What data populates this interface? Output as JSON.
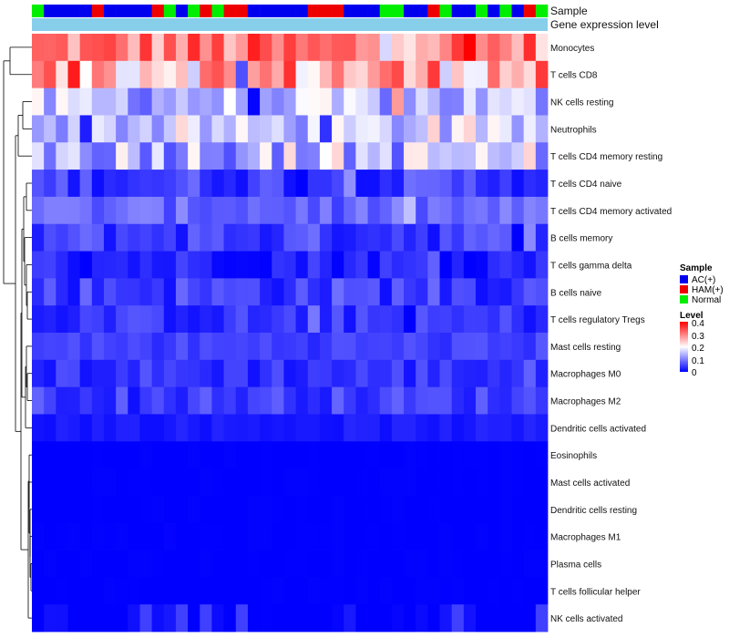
{
  "chart_data": {
    "type": "heatmap",
    "title": "",
    "annotation_rows": [
      "Sample",
      "Gene expression level"
    ],
    "rows": [
      "Monocytes",
      "T cells CD8",
      "NK cells resting",
      "Neutrophils",
      "T cells CD4 memory resting",
      "T cells CD4 naive",
      "T cells CD4 memory activated",
      "B cells memory",
      "T cells gamma delta",
      "B cells naive",
      "T cells regulatory  Tregs",
      "Mast cells resting",
      "Macrophages M0",
      "Macrophages M2",
      "Dendritic cells activated",
      "Eosinophils",
      "Mast cells activated",
      "Dendritic cells resting",
      "Macrophages M1",
      "Plasma cells",
      "T cells follicular helper",
      "NK cells activated"
    ],
    "sample_groups": [
      "N",
      "A",
      "A",
      "A",
      "A",
      "H",
      "A",
      "A",
      "A",
      "A",
      "H",
      "N",
      "A",
      "N",
      "H",
      "N",
      "H",
      "H",
      "A",
      "A",
      "A",
      "A",
      "A",
      "H",
      "H",
      "H",
      "A",
      "A",
      "A",
      "N",
      "N",
      "A",
      "A",
      "H",
      "N",
      "A",
      "A",
      "N",
      "A",
      "N",
      "A",
      "H",
      "N"
    ],
    "sample_legend": {
      "title": "Sample",
      "items": [
        {
          "key": "A",
          "label": "AC(+)",
          "color": "#0000EE"
        },
        {
          "key": "H",
          "label": "HAM(+)",
          "color": "#EE0000"
        },
        {
          "key": "N",
          "label": "Normal",
          "color": "#00EE00"
        }
      ]
    },
    "gene_expression_color": "#87CEEB",
    "level_legend": {
      "title": "Level",
      "ticks": [
        "0.4",
        "0.3",
        "0.2",
        "0.1",
        "0"
      ],
      "min": 0,
      "max": 0.4,
      "colors": {
        "low": "#0000FF",
        "mid": "#FFFFFF",
        "high": "#FF0000"
      }
    },
    "row_means": [
      0.3,
      0.27,
      0.14,
      0.15,
      0.15,
      0.05,
      0.08,
      0.05,
      0.03,
      0.05,
      0.04,
      0.05,
      0.04,
      0.05,
      0.02,
      0.0,
      0.0,
      0.0,
      0.0,
      0.0,
      0.0,
      0.0
    ],
    "row_spread": [
      0.08,
      0.11,
      0.07,
      0.06,
      0.09,
      0.04,
      0.03,
      0.04,
      0.03,
      0.04,
      0.03,
      0.02,
      0.03,
      0.03,
      0.01,
      0.002,
      0.002,
      0.002,
      0.002,
      0.002,
      0.002,
      0.02
    ]
  }
}
